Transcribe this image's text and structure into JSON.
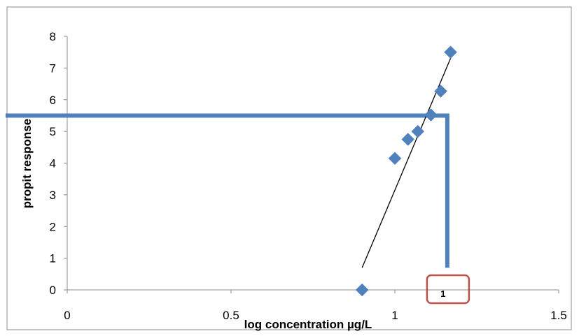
{
  "chart_data": {
    "type": "scatter",
    "title": "",
    "xlabel": "log  concentration µg/L",
    "ylabel": "propit response",
    "xlim": [
      0,
      1.5
    ],
    "ylim": [
      0,
      8
    ],
    "x_ticks": [
      {
        "value": 0,
        "label": "0"
      },
      {
        "value": 0.5,
        "label": "0.5"
      },
      {
        "value": 1,
        "label": "1"
      },
      {
        "value": 1.5,
        "label": "1.5"
      }
    ],
    "y_ticks": [
      {
        "value": 0,
        "label": "0"
      },
      {
        "value": 1,
        "label": "1"
      },
      {
        "value": 2,
        "label": "2"
      },
      {
        "value": 3,
        "label": "3"
      },
      {
        "value": 4,
        "label": "4"
      },
      {
        "value": 5,
        "label": "5"
      },
      {
        "value": 6,
        "label": "6"
      },
      {
        "value": 7,
        "label": "7"
      },
      {
        "value": 8,
        "label": "8"
      }
    ],
    "grid": false,
    "legend": "none",
    "series": [
      {
        "marker": "diamond",
        "color": "#4F81BD",
        "points": [
          {
            "x": 0.9,
            "y": 0.0
          },
          {
            "x": 1.0,
            "y": 4.15
          },
          {
            "x": 1.04,
            "y": 4.75
          },
          {
            "x": 1.07,
            "y": 5.0
          },
          {
            "x": 1.11,
            "y": 5.52
          },
          {
            "x": 1.14,
            "y": 6.27
          },
          {
            "x": 1.17,
            "y": 7.5
          }
        ]
      }
    ],
    "trendline": {
      "color": "#000000",
      "from": {
        "x": 0.9,
        "y": 0.7
      },
      "to": {
        "x": 1.18,
        "y": 7.55
      }
    },
    "guide_line": {
      "color": "#4F81BD",
      "y": 5.5,
      "x": 1.16,
      "x_end_y": 0.7
    },
    "annotation": {
      "text": "1",
      "x": 1.16,
      "border_color": "#C0504D"
    }
  }
}
